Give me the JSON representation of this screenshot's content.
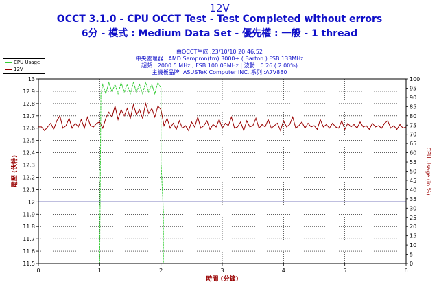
{
  "header": {
    "title": "12V",
    "subtitle": "OCCT 3.1.0 - CPU OCCT Test - Test Completed without errors",
    "params": "6分 - 模式 : Medium Data Set - 優先權 : 一般 - 1 thread"
  },
  "info": {
    "line1": "由OCCT生成 :23/10/10 20:46:52",
    "line2": "中央處理器 : AMD Sempron(tm) 3000+ ( Barton ) FSB 133MHz",
    "line3": "超頻 : 2000.5 MHz ; FSB 100.03MHz | 波動 : 0.26 ( 2.00%)",
    "line4": "主機板品牌 :ASUSTeK Computer INC.,系列 :A7V880"
  },
  "legend": {
    "items": [
      {
        "label": "CPU Usage",
        "color": "#33cc33"
      },
      {
        "label": "12V",
        "color": "#990000"
      }
    ]
  },
  "chart_data": {
    "type": "line",
    "xlabel": "時間 (分鐘)",
    "ylabel": "電壓 (伏特)",
    "y2label": "CPU Usage (in %)",
    "xlim": [
      0,
      6
    ],
    "ylim": [
      11.5,
      13
    ],
    "y2lim": [
      0,
      100
    ],
    "x_ticks": [
      "0",
      "1",
      "2",
      "3",
      "4",
      "5",
      "6"
    ],
    "y_ticks": [
      "11.5",
      "11.6",
      "11.7",
      "11.8",
      "11.9",
      "12",
      "12.1",
      "12.2",
      "12.3",
      "12.4",
      "12.5",
      "12.6",
      "12.7",
      "12.8",
      "12.9",
      "13"
    ],
    "y2_ticks": [
      "0",
      "5",
      "10",
      "15",
      "20",
      "25",
      "30",
      "35",
      "40",
      "45",
      "50",
      "55",
      "60",
      "65",
      "70",
      "75",
      "80",
      "85",
      "90",
      "95",
      "100"
    ],
    "reference_line": {
      "y": 12,
      "color": "#000080"
    },
    "grid": true,
    "series": [
      {
        "name": "12V",
        "axis": "left",
        "color": "#990000",
        "x": [
          0,
          0.05,
          0.1,
          0.15,
          0.2,
          0.25,
          0.3,
          0.35,
          0.4,
          0.45,
          0.5,
          0.55,
          0.6,
          0.65,
          0.7,
          0.75,
          0.8,
          0.85,
          0.9,
          0.95,
          1.0,
          1.05,
          1.1,
          1.15,
          1.2,
          1.25,
          1.3,
          1.35,
          1.4,
          1.45,
          1.5,
          1.55,
          1.6,
          1.65,
          1.7,
          1.75,
          1.8,
          1.85,
          1.9,
          1.95,
          2.0,
          2.05,
          2.1,
          2.15,
          2.2,
          2.25,
          2.3,
          2.35,
          2.4,
          2.45,
          2.5,
          2.55,
          2.6,
          2.65,
          2.7,
          2.75,
          2.8,
          2.85,
          2.9,
          2.95,
          3.0,
          3.05,
          3.1,
          3.15,
          3.2,
          3.25,
          3.3,
          3.35,
          3.4,
          3.45,
          3.5,
          3.55,
          3.6,
          3.65,
          3.7,
          3.75,
          3.8,
          3.85,
          3.9,
          3.95,
          4.0,
          4.05,
          4.1,
          4.15,
          4.2,
          4.25,
          4.3,
          4.35,
          4.4,
          4.45,
          4.5,
          4.55,
          4.6,
          4.65,
          4.7,
          4.75,
          4.8,
          4.85,
          4.9,
          4.95,
          5.0,
          5.05,
          5.1,
          5.15,
          5.2,
          5.25,
          5.3,
          5.35,
          5.4,
          5.45,
          5.5,
          5.55,
          5.6,
          5.65,
          5.7,
          5.75,
          5.8,
          5.85,
          5.9,
          5.95,
          6.0
        ],
        "y": [
          12.61,
          12.61,
          12.58,
          12.61,
          12.64,
          12.59,
          12.66,
          12.7,
          12.6,
          12.62,
          12.68,
          12.6,
          12.64,
          12.61,
          12.67,
          12.6,
          12.69,
          12.62,
          12.61,
          12.64,
          12.65,
          12.6,
          12.68,
          12.73,
          12.69,
          12.78,
          12.67,
          12.75,
          12.7,
          12.76,
          12.68,
          12.79,
          12.71,
          12.75,
          12.68,
          12.8,
          12.72,
          12.76,
          12.69,
          12.78,
          12.75,
          12.62,
          12.68,
          12.6,
          12.64,
          12.59,
          12.66,
          12.6,
          12.62,
          12.58,
          12.65,
          12.61,
          12.69,
          12.6,
          12.62,
          12.66,
          12.59,
          12.63,
          12.61,
          12.67,
          12.6,
          12.64,
          12.62,
          12.69,
          12.6,
          12.61,
          12.65,
          12.58,
          12.66,
          12.61,
          12.62,
          12.68,
          12.6,
          12.63,
          12.61,
          12.67,
          12.6,
          12.62,
          12.64,
          12.58,
          12.66,
          12.61,
          12.63,
          12.69,
          12.6,
          12.62,
          12.65,
          12.6,
          12.64,
          12.61,
          12.62,
          12.59,
          12.67,
          12.61,
          12.63,
          12.6,
          12.64,
          12.61,
          12.6,
          12.66,
          12.59,
          12.64,
          12.61,
          12.63,
          12.6,
          12.65,
          12.61,
          12.62,
          12.59,
          12.64,
          12.61,
          12.62,
          12.6,
          12.64,
          12.66,
          12.6,
          12.62,
          12.59,
          12.63,
          12.6,
          12.61
        ]
      },
      {
        "name": "CPU Usage",
        "axis": "right",
        "color": "#33cc33",
        "x": [
          0,
          1.0,
          1.02,
          1.05,
          1.1,
          1.15,
          1.2,
          1.25,
          1.3,
          1.35,
          1.4,
          1.45,
          1.5,
          1.55,
          1.6,
          1.65,
          1.7,
          1.75,
          1.8,
          1.85,
          1.9,
          1.95,
          2.0,
          2.0,
          2.04,
          2.04,
          6.0
        ],
        "y": [
          0,
          0,
          92,
          97,
          92,
          98,
          93,
          97,
          92,
          98,
          93,
          97,
          92,
          98,
          93,
          97,
          92,
          98,
          93,
          97,
          92,
          98,
          95,
          55,
          28,
          0,
          0
        ]
      }
    ]
  }
}
